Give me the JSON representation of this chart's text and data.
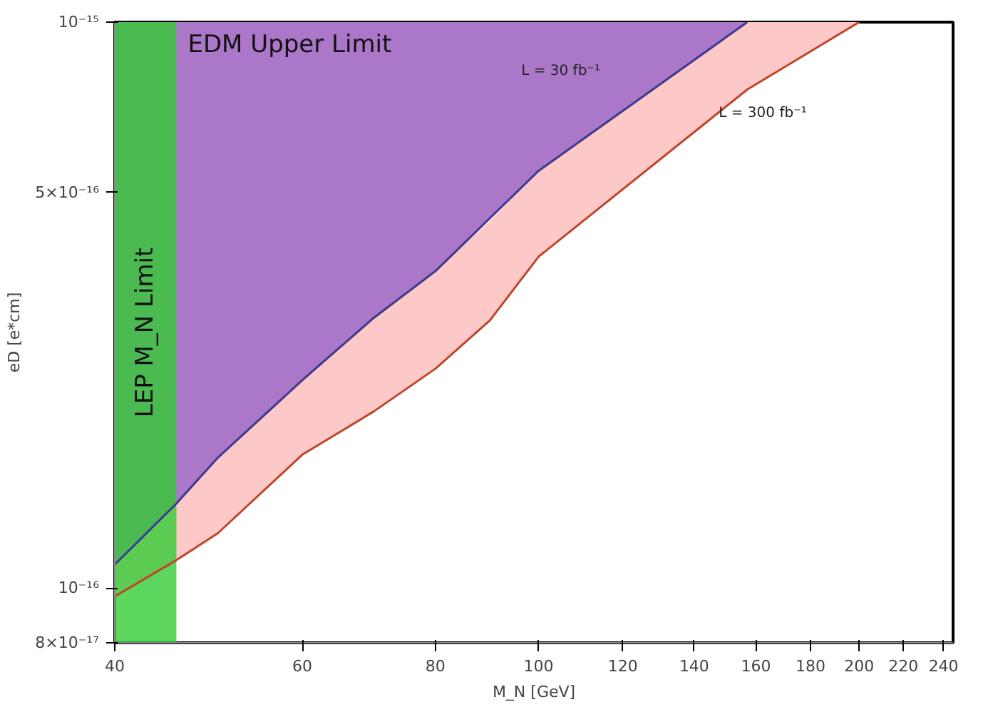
{
  "chart_data": {
    "type": "line",
    "xlabel": "M_N [GeV]",
    "ylabel": "eD [e*cm]",
    "log": "xy",
    "grid": false,
    "xlim": [
      40,
      245
    ],
    "xticks": [
      40,
      60,
      80,
      100,
      120,
      140,
      160,
      180,
      200,
      220,
      240
    ],
    "ylim": [
      8e-17,
      1e-15
    ],
    "yticks": [
      {
        "value": 8e-17,
        "label": "8×10⁻¹⁷"
      },
      {
        "value": 1e-16,
        "label": "10⁻¹⁶"
      },
      {
        "value": 5e-16,
        "label": "5×10⁻¹⁶"
      },
      {
        "value": 1e-15,
        "label": "10⁻¹⁵"
      }
    ],
    "series": [
      {
        "name": "L = 30 fb⁻¹",
        "color": "#3d3a8f",
        "x": [
          40,
          45.7,
          50,
          60,
          70,
          80,
          100,
          157
        ],
        "values": [
          1.1e-16,
          1.41e-16,
          1.7e-16,
          2.33e-16,
          3e-16,
          3.63e-16,
          5.46e-16,
          1e-15
        ],
        "lower": [
          1.1e-16,
          1.41e-16,
          1.7e-16,
          2.33e-16,
          3e-16,
          3.63e-16,
          5.46e-16,
          1e-15
        ],
        "upper": [
          1e-15,
          1e-15,
          1e-15,
          1e-15,
          1e-15,
          1e-15,
          1e-15,
          1e-15
        ]
      },
      {
        "name": "L = 300 fb⁻¹",
        "color": "#c0452a",
        "x": [
          40,
          45.7,
          50,
          60,
          70,
          80,
          90,
          100,
          157,
          200
        ],
        "values": [
          9.66e-17,
          1.12e-16,
          1.25e-16,
          1.72e-16,
          2.05e-16,
          2.44e-16,
          2.97e-16,
          3.85e-16,
          7.6e-16,
          1e-15
        ],
        "lower": [
          9.66e-17,
          1.12e-16,
          1.25e-16,
          1.72e-16,
          2.05e-16,
          2.44e-16,
          2.97e-16,
          3.85e-16,
          7.6e-16,
          1e-15
        ],
        "upper": [
          1.1e-16,
          1.41e-16,
          1.7e-16,
          2.33e-16,
          3e-16,
          3.63e-16,
          4.45e-16,
          5.46e-16,
          1e-15,
          1e-15
        ]
      }
    ],
    "bands": [
      {
        "axis": "x",
        "from": 40,
        "to": 45.7,
        "label": "LEP M_N Limit",
        "color": "#33cc33"
      }
    ],
    "annotations": [
      "EDM Upper Limit"
    ]
  }
}
